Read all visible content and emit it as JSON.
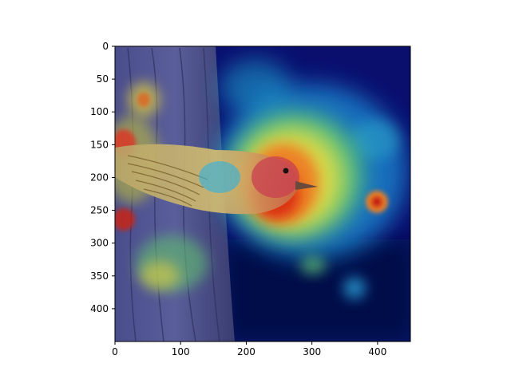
{
  "figure": {
    "subject": "bird-on-tree-trunk",
    "overlay": "attention-heatmap",
    "colormap": "jet",
    "axis_color": "#000000",
    "background": "#ffffff"
  },
  "axes": {
    "x_ticks": [
      {
        "value": 0,
        "label": "0"
      },
      {
        "value": 100,
        "label": "100"
      },
      {
        "value": 200,
        "label": "200"
      },
      {
        "value": 300,
        "label": "300"
      },
      {
        "value": 400,
        "label": "400"
      }
    ],
    "y_ticks": [
      {
        "value": 0,
        "label": "0"
      },
      {
        "value": 50,
        "label": "50"
      },
      {
        "value": 100,
        "label": "100"
      },
      {
        "value": 150,
        "label": "150"
      },
      {
        "value": 200,
        "label": "200"
      },
      {
        "value": 250,
        "label": "250"
      },
      {
        "value": 300,
        "label": "300"
      },
      {
        "value": 350,
        "label": "350"
      },
      {
        "value": 400,
        "label": "400"
      }
    ],
    "x_range": [
      0,
      450
    ],
    "y_range": [
      0,
      450
    ]
  }
}
